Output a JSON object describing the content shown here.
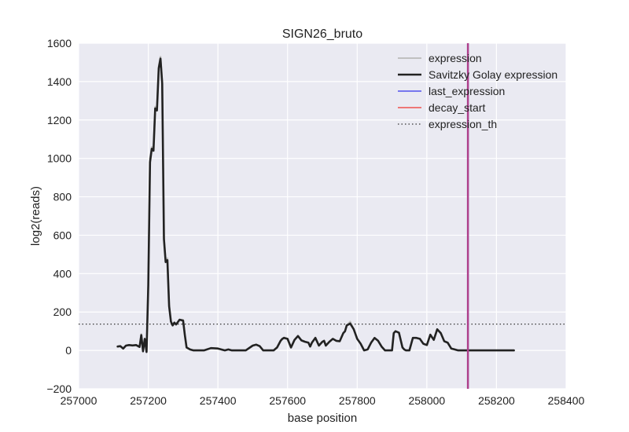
{
  "chart_data": {
    "type": "line",
    "title": "SIGN26_bruto",
    "xlabel": "base position",
    "ylabel": "log2(reads)",
    "xlim": [
      257000,
      258400
    ],
    "ylim": [
      -200,
      1600
    ],
    "xticks": [
      257000,
      257200,
      257400,
      257600,
      257800,
      258000,
      258200,
      258400
    ],
    "yticks": [
      -200,
      0,
      200,
      400,
      600,
      800,
      1000,
      1200,
      1400,
      1600
    ],
    "xtick_labels": [
      "257000",
      "257200",
      "257400",
      "257600",
      "257800",
      "258000",
      "258200",
      "258400"
    ],
    "ytick_labels": [
      "−200",
      "0",
      "200",
      "400",
      "600",
      "800",
      "1000",
      "1200",
      "1400",
      "1600"
    ],
    "grid": true,
    "legend_position": "top-right",
    "colors": {
      "background": "#EAEAF2",
      "grid": "#FFFFFF",
      "expression": "#C0C0C0",
      "savgol": "#222222",
      "last_expression": "#7777EE",
      "decay_start": "#EE7777",
      "vline": "#B0408A",
      "threshold": "#333333"
    },
    "legend": [
      {
        "label": "expression",
        "series": "expression",
        "style": "solid"
      },
      {
        "label": "Savitzky Golay expression",
        "series": "savgol",
        "style": "solid"
      },
      {
        "label": "last_expression",
        "series": "last_expression",
        "style": "solid"
      },
      {
        "label": "decay_start",
        "series": "decay_start",
        "style": "solid"
      },
      {
        "label": "expression_th",
        "series": "threshold",
        "style": "dotted"
      }
    ],
    "expression_th": 137,
    "last_expression": 258118,
    "decay_start": 258118,
    "series": [
      {
        "name": "expression",
        "x": [
          257112,
          257120,
          257128,
          257136,
          257145,
          257155,
          257165,
          257175,
          257180,
          257185,
          257190,
          257195,
          257200,
          257205,
          257210,
          257215,
          257220,
          257225,
          257230,
          257235,
          257240,
          257245,
          257250,
          257255,
          257260,
          257265,
          257270,
          257275,
          257280,
          257290,
          257300,
          257305,
          257310,
          257320,
          257330,
          257340,
          257360,
          257380,
          257400,
          257420,
          257430,
          257440,
          257460,
          257480,
          257500,
          257510,
          257520,
          257530,
          257540,
          257550,
          257560,
          257570,
          257580,
          257585,
          257590,
          257600,
          257610,
          257620,
          257630,
          257640,
          257650,
          257660,
          257665,
          257670,
          257680,
          257690,
          257700,
          257705,
          257710,
          257720,
          257730,
          257740,
          257750,
          257760,
          257765,
          257770,
          257780,
          257790,
          257800,
          257810,
          257820,
          257830,
          257840,
          257850,
          257860,
          257870,
          257880,
          257890,
          257900,
          257905,
          257910,
          257920,
          257930,
          257935,
          257940,
          257950,
          257960,
          257970,
          257980,
          257990,
          258000,
          258010,
          258020,
          258030,
          258040,
          258050,
          258060,
          258070,
          258080,
          258090,
          258100,
          258110,
          258115,
          258120,
          258150,
          258200,
          258250
        ],
        "y": [
          20,
          22,
          8,
          25,
          28,
          26,
          28,
          18,
          85,
          -5,
          60,
          -10,
          350,
          1000,
          1060,
          1050,
          1270,
          1260,
          1480,
          1530,
          1400,
          590,
          470,
          480,
          240,
          150,
          130,
          145,
          135,
          160,
          160,
          80,
          15,
          5,
          0,
          0,
          0,
          12,
          10,
          0,
          5,
          0,
          0,
          0,
          25,
          30,
          22,
          0,
          0,
          0,
          0,
          15,
          50,
          62,
          68,
          60,
          15,
          55,
          75,
          52,
          45,
          40,
          20,
          40,
          68,
          25,
          45,
          50,
          25,
          45,
          60,
          50,
          48,
          90,
          100,
          130,
          150,
          110,
          60,
          35,
          0,
          5,
          40,
          65,
          50,
          20,
          0,
          0,
          0,
          92,
          100,
          92,
          15,
          5,
          0,
          0,
          65,
          65,
          60,
          35,
          28,
          82,
          55,
          110,
          92,
          48,
          42,
          10,
          5,
          0,
          0,
          0,
          0,
          0,
          0,
          0,
          0
        ]
      },
      {
        "name": "Savitzky Golay expression",
        "x": [
          257112,
          257120,
          257128,
          257136,
          257145,
          257155,
          257165,
          257175,
          257180,
          257185,
          257190,
          257195,
          257200,
          257205,
          257210,
          257215,
          257220,
          257225,
          257230,
          257235,
          257240,
          257245,
          257250,
          257255,
          257260,
          257265,
          257270,
          257275,
          257280,
          257290,
          257300,
          257305,
          257310,
          257320,
          257330,
          257340,
          257360,
          257380,
          257400,
          257420,
          257430,
          257440,
          257460,
          257480,
          257500,
          257510,
          257520,
          257530,
          257540,
          257550,
          257560,
          257570,
          257580,
          257585,
          257590,
          257600,
          257610,
          257620,
          257630,
          257640,
          257650,
          257660,
          257665,
          257670,
          257680,
          257690,
          257700,
          257705,
          257710,
          257720,
          257730,
          257740,
          257750,
          257760,
          257765,
          257770,
          257780,
          257790,
          257800,
          257810,
          257820,
          257830,
          257840,
          257850,
          257860,
          257870,
          257880,
          257890,
          257900,
          257905,
          257910,
          257920,
          257930,
          257935,
          257940,
          257950,
          257960,
          257970,
          257980,
          257990,
          258000,
          258010,
          258020,
          258030,
          258040,
          258050,
          258060,
          258070,
          258080,
          258090,
          258100,
          258110,
          258115,
          258120,
          258150,
          258200,
          258250
        ],
        "y": [
          20,
          22,
          10,
          25,
          28,
          26,
          28,
          18,
          80,
          -5,
          60,
          -8,
          340,
          980,
          1050,
          1040,
          1260,
          1250,
          1470,
          1520,
          1390,
          580,
          460,
          470,
          230,
          150,
          130,
          145,
          135,
          160,
          155,
          80,
          15,
          5,
          0,
          0,
          0,
          12,
          10,
          0,
          5,
          0,
          0,
          0,
          25,
          30,
          22,
          0,
          0,
          0,
          0,
          15,
          50,
          60,
          65,
          60,
          15,
          55,
          75,
          52,
          45,
          40,
          20,
          40,
          65,
          25,
          45,
          50,
          25,
          45,
          60,
          50,
          48,
          90,
          100,
          130,
          140,
          110,
          60,
          35,
          0,
          5,
          40,
          65,
          50,
          20,
          0,
          0,
          0,
          90,
          100,
          92,
          15,
          5,
          0,
          0,
          65,
          65,
          60,
          35,
          28,
          82,
          55,
          110,
          90,
          48,
          40,
          10,
          5,
          0,
          0,
          0,
          0,
          0,
          0,
          0,
          0
        ]
      }
    ]
  }
}
